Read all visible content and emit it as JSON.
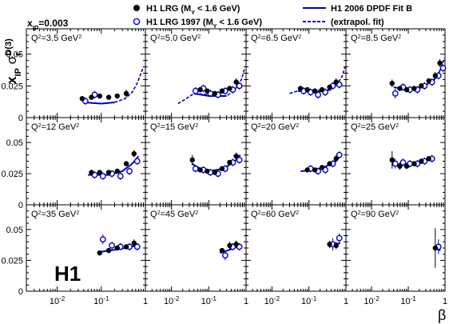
{
  "chart_data": {
    "type": "scatter",
    "header": "xₙₚ=0.003",
    "header_parts": {
      "x": "x",
      "sub": "IP",
      "eq": "=0.003"
    },
    "ylabel": {
      "x": "x",
      "x_sub": "IP",
      "sigma": "σ",
      "sigma_sub": "r",
      "sigma_sup": "D(3)"
    },
    "xlabel": "β",
    "logo": "H1",
    "xscale": "log",
    "xlim": [
      0.002,
      1.0
    ],
    "ylim": [
      0,
      0.07
    ],
    "yticks": [
      {
        "v": 0,
        "label": "0"
      },
      {
        "v": 0.025,
        "label": "0.025"
      },
      {
        "v": 0.05,
        "label": "0.05"
      }
    ],
    "xticks": [
      {
        "v": 0.01,
        "base": "10",
        "exp": "-2"
      },
      {
        "v": 0.1,
        "base": "10",
        "exp": "-1"
      },
      {
        "v": 1,
        "base": "1",
        "exp": ""
      }
    ],
    "legend": [
      {
        "label": "H1 LRG (M",
        "sub": "Y",
        "rest": " < 1.6 GeV)",
        "marker": "filled-circle"
      },
      {
        "label": "H1 LRG 1997 (M",
        "sub": "Y",
        "rest": " < 1.6 GeV)",
        "marker": "open-circle"
      },
      {
        "label": "H1 2006 DPDF Fit B",
        "marker": "solid-line"
      },
      {
        "label": "(extrapol. fit)",
        "marker": "dashed-line"
      }
    ],
    "colors": {
      "filled": "#000000",
      "open": "#0000cc",
      "fit": "#0000cc"
    },
    "panels": [
      {
        "q2": "Q²=3.5 GeV²",
        "q2_value": "3.5",
        "filled": [
          {
            "x": 0.04,
            "y": 0.015,
            "e": 0.002
          },
          {
            "x": 0.065,
            "y": 0.016,
            "e": 0.002
          },
          {
            "x": 0.1,
            "y": 0.017,
            "e": 0.002
          },
          {
            "x": 0.16,
            "y": 0.016,
            "e": 0.002
          },
          {
            "x": 0.25,
            "y": 0.017,
            "e": 0.002
          },
          {
            "x": 0.4,
            "y": 0.019,
            "e": 0.003
          }
        ],
        "open": [
          {
            "x": 0.04,
            "y": 0.013,
            "e": 0.003
          },
          {
            "x": 0.065,
            "y": 0.018,
            "e": 0.003
          }
        ],
        "fit": [
          [
            0.04,
            0.012
          ],
          [
            0.1,
            0.011
          ],
          [
            0.2,
            0.012
          ]
        ],
        "fit_ext": [
          [
            0.2,
            0.012
          ],
          [
            0.35,
            0.015
          ],
          [
            0.5,
            0.02
          ],
          [
            0.65,
            0.027
          ],
          [
            0.78,
            0.034
          ],
          [
            0.9,
            0.04
          ]
        ]
      },
      {
        "q2": "Q²=5.0 GeV²",
        "q2_value": "5.0",
        "filled": [
          {
            "x": 0.065,
            "y": 0.022,
            "e": 0.002
          },
          {
            "x": 0.1,
            "y": 0.021,
            "e": 0.002
          },
          {
            "x": 0.16,
            "y": 0.019,
            "e": 0.002
          },
          {
            "x": 0.25,
            "y": 0.021,
            "e": 0.002
          },
          {
            "x": 0.4,
            "y": 0.023,
            "e": 0.002
          },
          {
            "x": 0.6,
            "y": 0.028,
            "e": 0.003
          }
        ],
        "open": [
          {
            "x": 0.04,
            "y": 0.021,
            "e": 0.003
          },
          {
            "x": 0.065,
            "y": 0.023,
            "e": 0.003
          },
          {
            "x": 0.1,
            "y": 0.019,
            "e": 0.003
          },
          {
            "x": 0.16,
            "y": 0.018,
            "e": 0.003
          },
          {
            "x": 0.25,
            "y": 0.021,
            "e": 0.003
          },
          {
            "x": 0.4,
            "y": 0.022,
            "e": 0.003
          },
          {
            "x": 0.6,
            "y": 0.025,
            "e": 0.003
          }
        ],
        "fit": [
          [
            0.04,
            0.019
          ],
          [
            0.1,
            0.017
          ],
          [
            0.3,
            0.017
          ]
        ],
        "fit_ext": [
          [
            0.015,
            0.011
          ],
          [
            0.025,
            0.015
          ],
          [
            0.04,
            0.019
          ],
          [
            0.3,
            0.017
          ],
          [
            0.5,
            0.022
          ],
          [
            0.75,
            0.03
          ],
          [
            0.9,
            0.038
          ]
        ]
      },
      {
        "q2": "Q²=6.5 GeV²",
        "q2_value": "6.5",
        "filled": [
          {
            "x": 0.065,
            "y": 0.023,
            "e": 0.002
          },
          {
            "x": 0.1,
            "y": 0.022,
            "e": 0.002
          },
          {
            "x": 0.16,
            "y": 0.021,
            "e": 0.002
          },
          {
            "x": 0.25,
            "y": 0.022,
            "e": 0.002
          },
          {
            "x": 0.4,
            "y": 0.024,
            "e": 0.002
          },
          {
            "x": 0.6,
            "y": 0.028,
            "e": 0.003
          }
        ],
        "open": [
          {
            "x": 0.065,
            "y": 0.021,
            "e": 0.003
          },
          {
            "x": 0.1,
            "y": 0.02,
            "e": 0.003
          },
          {
            "x": 0.16,
            "y": 0.018,
            "e": 0.003
          },
          {
            "x": 0.25,
            "y": 0.02,
            "e": 0.003
          },
          {
            "x": 0.4,
            "y": 0.025,
            "e": 0.003
          },
          {
            "x": 0.6,
            "y": 0.026,
            "e": 0.003
          }
        ],
        "fit": [
          [
            0.05,
            0.021
          ],
          [
            0.15,
            0.02
          ],
          [
            0.4,
            0.022
          ]
        ],
        "fit_ext": [
          [
            0.03,
            0.019
          ],
          [
            0.05,
            0.021
          ],
          [
            0.4,
            0.022
          ],
          [
            0.6,
            0.027
          ],
          [
            0.8,
            0.033
          ],
          [
            0.95,
            0.04
          ]
        ]
      },
      {
        "q2": "Q²=8.5 GeV²",
        "q2_value": "8.5",
        "filled": [
          {
            "x": 0.04,
            "y": 0.027,
            "e": 0.003
          },
          {
            "x": 0.065,
            "y": 0.023,
            "e": 0.002
          },
          {
            "x": 0.1,
            "y": 0.022,
            "e": 0.002
          },
          {
            "x": 0.16,
            "y": 0.023,
            "e": 0.002
          },
          {
            "x": 0.25,
            "y": 0.025,
            "e": 0.002
          },
          {
            "x": 0.4,
            "y": 0.029,
            "e": 0.002
          },
          {
            "x": 0.6,
            "y": 0.033,
            "e": 0.003
          },
          {
            "x": 0.8,
            "y": 0.043,
            "e": 0.003
          }
        ],
        "open": [
          {
            "x": 0.04,
            "y": 0.019,
            "e": 0.004
          },
          {
            "x": 0.065,
            "y": 0.024,
            "e": 0.003
          },
          {
            "x": 0.1,
            "y": 0.022,
            "e": 0.003
          },
          {
            "x": 0.16,
            "y": 0.022,
            "e": 0.003
          },
          {
            "x": 0.25,
            "y": 0.025,
            "e": 0.003
          },
          {
            "x": 0.4,
            "y": 0.028,
            "e": 0.003
          },
          {
            "x": 0.6,
            "y": 0.033,
            "e": 0.003
          },
          {
            "x": 0.8,
            "y": 0.039,
            "e": 0.003
          }
        ],
        "fit": [
          [
            0.04,
            0.024
          ],
          [
            0.1,
            0.022
          ],
          [
            0.25,
            0.024
          ],
          [
            0.5,
            0.03
          ],
          [
            0.7,
            0.036
          ]
        ],
        "fit_ext": [
          [
            0.7,
            0.036
          ],
          [
            0.85,
            0.042
          ],
          [
            0.95,
            0.047
          ]
        ]
      },
      {
        "q2": "Q²=12 GeV²",
        "q2_value": "12",
        "filled": [
          {
            "x": 0.065,
            "y": 0.026,
            "e": 0.002
          },
          {
            "x": 0.1,
            "y": 0.026,
            "e": 0.002
          },
          {
            "x": 0.16,
            "y": 0.026,
            "e": 0.002
          },
          {
            "x": 0.25,
            "y": 0.027,
            "e": 0.002
          },
          {
            "x": 0.4,
            "y": 0.033,
            "e": 0.002
          },
          {
            "x": 0.6,
            "y": 0.041,
            "e": 0.003
          }
        ],
        "open": [
          {
            "x": 0.065,
            "y": 0.024,
            "e": 0.003
          },
          {
            "x": 0.1,
            "y": 0.023,
            "e": 0.003
          },
          {
            "x": 0.16,
            "y": 0.025,
            "e": 0.003
          },
          {
            "x": 0.25,
            "y": 0.023,
            "e": 0.003
          },
          {
            "x": 0.4,
            "y": 0.027,
            "e": 0.003
          },
          {
            "x": 0.6,
            "y": 0.035,
            "e": 0.003
          }
        ],
        "fit": [
          [
            0.05,
            0.024
          ],
          [
            0.15,
            0.024
          ],
          [
            0.3,
            0.027
          ],
          [
            0.5,
            0.033
          ],
          [
            0.7,
            0.039
          ]
        ],
        "fit_ext": []
      },
      {
        "q2": "Q²=15 GeV²",
        "q2_value": "15",
        "filled": [
          {
            "x": 0.04,
            "y": 0.036,
            "e": 0.004
          },
          {
            "x": 0.065,
            "y": 0.028,
            "e": 0.002
          },
          {
            "x": 0.1,
            "y": 0.027,
            "e": 0.002
          },
          {
            "x": 0.16,
            "y": 0.026,
            "e": 0.002
          },
          {
            "x": 0.25,
            "y": 0.029,
            "e": 0.002
          },
          {
            "x": 0.4,
            "y": 0.034,
            "e": 0.002
          },
          {
            "x": 0.6,
            "y": 0.039,
            "e": 0.003
          }
        ],
        "open": [
          {
            "x": 0.04,
            "y": 0.029,
            "e": 0.003
          },
          {
            "x": 0.065,
            "y": 0.028,
            "e": 0.003
          },
          {
            "x": 0.1,
            "y": 0.026,
            "e": 0.003
          },
          {
            "x": 0.16,
            "y": 0.025,
            "e": 0.003
          },
          {
            "x": 0.25,
            "y": 0.029,
            "e": 0.003
          },
          {
            "x": 0.4,
            "y": 0.034,
            "e": 0.003
          },
          {
            "x": 0.6,
            "y": 0.036,
            "e": 0.003
          }
        ],
        "fit": [
          [
            0.035,
            0.033
          ],
          [
            0.06,
            0.029
          ],
          [
            0.1,
            0.027
          ],
          [
            0.25,
            0.029
          ],
          [
            0.5,
            0.035
          ],
          [
            0.7,
            0.04
          ]
        ],
        "fit_ext": []
      },
      {
        "q2": "Q²=20 GeV²",
        "q2_value": "20",
        "filled": [
          {
            "x": 0.1,
            "y": 0.028,
            "e": 0.002
          },
          {
            "x": 0.16,
            "y": 0.028,
            "e": 0.002
          },
          {
            "x": 0.25,
            "y": 0.03,
            "e": 0.002
          },
          {
            "x": 0.4,
            "y": 0.033,
            "e": 0.002
          },
          {
            "x": 0.6,
            "y": 0.037,
            "e": 0.003
          }
        ],
        "open": [
          {
            "x": 0.1,
            "y": 0.029,
            "e": 0.003
          },
          {
            "x": 0.16,
            "y": 0.027,
            "e": 0.003
          },
          {
            "x": 0.25,
            "y": 0.028,
            "e": 0.003
          },
          {
            "x": 0.4,
            "y": 0.033,
            "e": 0.003
          },
          {
            "x": 0.6,
            "y": 0.04,
            "e": 0.003
          }
        ],
        "fit": [
          [
            0.06,
            0.027
          ],
          [
            0.15,
            0.028
          ],
          [
            0.3,
            0.031
          ],
          [
            0.5,
            0.035
          ],
          [
            0.7,
            0.039
          ]
        ],
        "fit_ext": []
      },
      {
        "q2": "Q²=25 GeV²",
        "q2_value": "25",
        "filled": [
          {
            "x": 0.04,
            "y": 0.036,
            "e": 0.007
          },
          {
            "x": 0.065,
            "y": 0.031,
            "e": 0.003
          },
          {
            "x": 0.1,
            "y": 0.031,
            "e": 0.002
          },
          {
            "x": 0.16,
            "y": 0.033,
            "e": 0.002
          },
          {
            "x": 0.25,
            "y": 0.035,
            "e": 0.002
          },
          {
            "x": 0.4,
            "y": 0.037,
            "e": 0.002
          }
        ],
        "open": [
          {
            "x": 0.04,
            "y": 0.033,
            "e": 0.004
          },
          {
            "x": 0.065,
            "y": 0.034,
            "e": 0.003
          },
          {
            "x": 0.1,
            "y": 0.033,
            "e": 0.003
          },
          {
            "x": 0.16,
            "y": 0.033,
            "e": 0.003
          },
          {
            "x": 0.25,
            "y": 0.035,
            "e": 0.003
          },
          {
            "x": 0.4,
            "y": 0.037,
            "e": 0.003
          }
        ],
        "fit": [
          [
            0.035,
            0.032
          ],
          [
            0.1,
            0.033
          ],
          [
            0.25,
            0.035
          ],
          [
            0.5,
            0.038
          ]
        ],
        "fit_ext": []
      },
      {
        "q2": "Q²=35 GeV²",
        "q2_value": "35",
        "filled": [
          {
            "x": 0.1,
            "y": 0.031,
            "e": 0.002
          },
          {
            "x": 0.16,
            "y": 0.033,
            "e": 0.002
          },
          {
            "x": 0.25,
            "y": 0.035,
            "e": 0.002
          },
          {
            "x": 0.4,
            "y": 0.036,
            "e": 0.002
          },
          {
            "x": 0.6,
            "y": 0.039,
            "e": 0.003
          }
        ],
        "open": [
          {
            "x": 0.1,
            "y": 0.042,
            "e": 0.004
          },
          {
            "x": 0.16,
            "y": 0.037,
            "e": 0.003
          },
          {
            "x": 0.25,
            "y": 0.036,
            "e": 0.003
          },
          {
            "x": 0.4,
            "y": 0.036,
            "e": 0.003
          },
          {
            "x": 0.6,
            "y": 0.036,
            "e": 0.003
          }
        ],
        "fit": [
          [
            0.1,
            0.032
          ],
          [
            0.25,
            0.034
          ],
          [
            0.5,
            0.036
          ],
          [
            0.7,
            0.038
          ]
        ],
        "fit_ext": []
      },
      {
        "q2": "Q²=45 GeV²",
        "q2_value": "45",
        "filled": [
          {
            "x": 0.25,
            "y": 0.033,
            "e": 0.002
          },
          {
            "x": 0.4,
            "y": 0.037,
            "e": 0.003
          },
          {
            "x": 0.6,
            "y": 0.038,
            "e": 0.003
          }
        ],
        "open": [
          {
            "x": 0.25,
            "y": 0.029,
            "e": 0.004
          },
          {
            "x": 0.4,
            "y": 0.036,
            "e": 0.003
          },
          {
            "x": 0.6,
            "y": 0.036,
            "e": 0.003
          }
        ],
        "fit": [
          [
            0.2,
            0.031
          ],
          [
            0.4,
            0.034
          ],
          [
            0.7,
            0.037
          ]
        ],
        "fit_ext": []
      },
      {
        "q2": "Q²=60 GeV²",
        "q2_value": "60",
        "filled": [
          {
            "x": 0.4,
            "y": 0.038,
            "e": 0.003
          },
          {
            "x": 0.6,
            "y": 0.037,
            "e": 0.003
          }
        ],
        "open": [
          {
            "x": 0.4,
            "y": 0.038,
            "e": 0.005
          },
          {
            "x": 0.6,
            "y": 0.043,
            "e": 0.004
          }
        ],
        "fit": [
          [
            0.35,
            0.036
          ],
          [
            0.5,
            0.038
          ],
          [
            0.7,
            0.039
          ]
        ],
        "fit_ext": []
      },
      {
        "q2": "Q²=90 GeV²",
        "q2_value": "90",
        "filled": [
          {
            "x": 0.6,
            "y": 0.035,
            "e": 0.016
          }
        ],
        "open": [
          {
            "x": 0.6,
            "y": 0.036,
            "e": 0.006
          }
        ],
        "fit": [
          [
            0.5,
            0.035
          ],
          [
            0.75,
            0.033
          ]
        ],
        "fit_ext": []
      }
    ]
  }
}
